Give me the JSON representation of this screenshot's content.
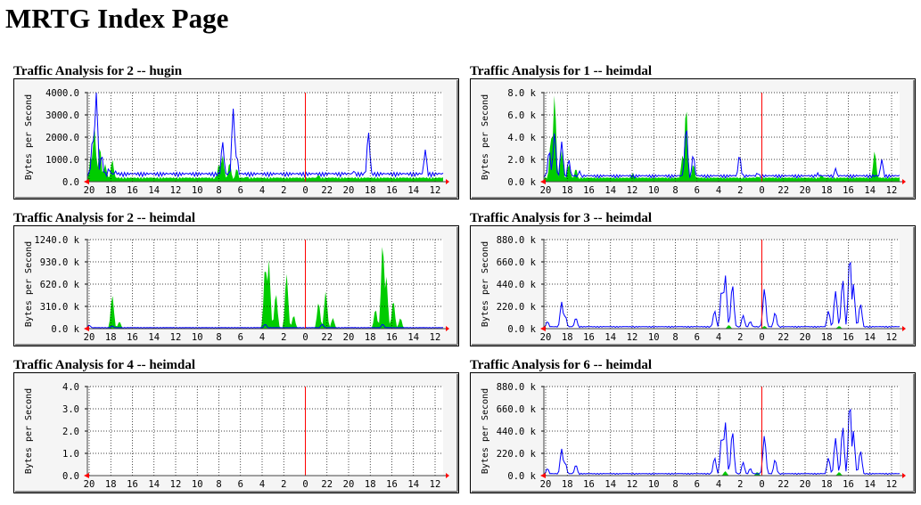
{
  "page": {
    "title": "MRTG Index Page"
  },
  "graph_common": {
    "y_axis_label": "Bytes per Second",
    "x_tick_labels": [
      "20",
      "18",
      "16",
      "14",
      "12",
      "10",
      "8",
      "6",
      "4",
      "2",
      "0",
      "22",
      "20",
      "18",
      "16",
      "14",
      "12"
    ],
    "colors": {
      "in_fill": "#00cc00",
      "out_line": "#0000ff",
      "grid": "#000000",
      "now_marker": "#ff0000",
      "frame_bg": "#f5f5f5",
      "plot_bg": "#ffffff",
      "axis": "#ff0000"
    }
  },
  "graphs": [
    {
      "title": "Traffic Analysis for 2 -- hugin",
      "y_tick_labels": [
        "4000.0",
        "3000.0",
        "2000.0",
        "1000.0",
        "0.0"
      ],
      "in_peaks": [
        [
          0.01,
          0.3
        ],
        [
          0.02,
          0.6
        ],
        [
          0.035,
          0.4
        ],
        [
          0.05,
          0.2
        ],
        [
          0.07,
          0.25
        ],
        [
          0.08,
          0.05
        ],
        [
          0.37,
          0.2
        ],
        [
          0.38,
          0.3
        ],
        [
          0.4,
          0.22
        ],
        [
          0.42,
          0.15
        ],
        [
          0.45,
          0.06
        ],
        [
          0.65,
          0.08
        ],
        [
          0.7,
          0.04
        ]
      ],
      "out_peaks": [
        [
          0.015,
          0.5
        ],
        [
          0.025,
          1.0
        ],
        [
          0.04,
          0.3
        ],
        [
          0.06,
          0.15
        ],
        [
          0.08,
          0.12
        ],
        [
          0.38,
          0.45
        ],
        [
          0.41,
          0.82
        ],
        [
          0.42,
          0.3
        ],
        [
          0.6,
          0.04
        ],
        [
          0.68,
          0.1
        ],
        [
          0.72,
          0.08
        ],
        [
          0.75,
          0.12
        ],
        [
          0.79,
          0.56
        ],
        [
          0.95,
          0.36
        ]
      ],
      "in_base": 0.04,
      "out_base": 0.08
    },
    {
      "title": "Traffic Analysis for 1 -- heimdal",
      "y_tick_labels": [
        "8.0 k",
        "6.0 k",
        "4.0 k",
        "2.0 k",
        "0.0 k"
      ],
      "in_peaks": [
        [
          0.02,
          0.5
        ],
        [
          0.03,
          0.98
        ],
        [
          0.05,
          0.35
        ],
        [
          0.07,
          0.2
        ],
        [
          0.09,
          0.15
        ],
        [
          0.25,
          0.1
        ],
        [
          0.39,
          0.3
        ],
        [
          0.4,
          0.85
        ],
        [
          0.42,
          0.2
        ],
        [
          0.6,
          0.06
        ],
        [
          0.78,
          0.08
        ],
        [
          0.93,
          0.35
        ]
      ],
      "out_peaks": [
        [
          0.015,
          0.35
        ],
        [
          0.03,
          0.55
        ],
        [
          0.05,
          0.45
        ],
        [
          0.07,
          0.25
        ],
        [
          0.1,
          0.12
        ],
        [
          0.4,
          0.62
        ],
        [
          0.42,
          0.3
        ],
        [
          0.55,
          0.3
        ],
        [
          0.6,
          0.1
        ],
        [
          0.77,
          0.1
        ],
        [
          0.82,
          0.15
        ],
        [
          0.95,
          0.25
        ]
      ],
      "in_base": 0.04,
      "out_base": 0.06
    },
    {
      "title": "Traffic Analysis for 2 -- heimdal",
      "y_tick_labels": [
        "1240.0 k",
        "930.0 k",
        "620.0 k",
        "310.0 k",
        "0.0 k"
      ],
      "in_peaks": [
        [
          0.07,
          0.38
        ],
        [
          0.09,
          0.08
        ],
        [
          0.5,
          0.72
        ],
        [
          0.51,
          0.78
        ],
        [
          0.53,
          0.4
        ],
        [
          0.56,
          0.62
        ],
        [
          0.58,
          0.15
        ],
        [
          0.65,
          0.3
        ],
        [
          0.67,
          0.42
        ],
        [
          0.69,
          0.12
        ],
        [
          0.81,
          0.22
        ],
        [
          0.83,
          0.98
        ],
        [
          0.84,
          0.6
        ],
        [
          0.86,
          0.32
        ],
        [
          0.88,
          0.12
        ]
      ],
      "out_peaks": [
        [
          0.005,
          0.04
        ],
        [
          0.07,
          0.03
        ],
        [
          0.5,
          0.05
        ],
        [
          0.66,
          0.05
        ],
        [
          0.83,
          0.05
        ]
      ],
      "in_base": 0.0,
      "out_base": 0.01
    },
    {
      "title": "Traffic Analysis for 3 -- heimdal",
      "y_tick_labels": [
        "880.0 k",
        "660.0 k",
        "440.0 k",
        "220.0 k",
        "0.0 k"
      ],
      "in_peaks": [
        [
          0.52,
          0.04
        ],
        [
          0.62,
          0.03
        ],
        [
          0.83,
          0.03
        ]
      ],
      "out_peaks": [
        [
          0.01,
          0.08
        ],
        [
          0.05,
          0.3
        ],
        [
          0.06,
          0.15
        ],
        [
          0.09,
          0.12
        ],
        [
          0.48,
          0.2
        ],
        [
          0.5,
          0.45
        ],
        [
          0.51,
          0.6
        ],
        [
          0.53,
          0.5
        ],
        [
          0.56,
          0.15
        ],
        [
          0.58,
          0.08
        ],
        [
          0.62,
          0.45
        ],
        [
          0.65,
          0.18
        ],
        [
          0.8,
          0.2
        ],
        [
          0.82,
          0.42
        ],
        [
          0.84,
          0.55
        ],
        [
          0.86,
          0.82
        ],
        [
          0.87,
          0.5
        ],
        [
          0.89,
          0.28
        ]
      ],
      "in_base": 0.0,
      "out_base": 0.02
    },
    {
      "title": "Traffic Analysis for 4 -- heimdal",
      "y_tick_labels": [
        "4.0",
        "3.0",
        "2.0",
        "1.0",
        "0.0"
      ],
      "in_peaks": [],
      "out_peaks": [],
      "in_base": 0.0,
      "out_base": 0.0
    },
    {
      "title": "Traffic Analysis for 6 -- heimdal",
      "y_tick_labels": [
        "880.0 k",
        "660.0 k",
        "440.0 k",
        "220.0 k",
        "0.0 k"
      ],
      "in_peaks": [
        [
          0.51,
          0.05
        ],
        [
          0.6,
          0.04
        ],
        [
          0.83,
          0.04
        ]
      ],
      "out_peaks": [
        [
          0.01,
          0.08
        ],
        [
          0.05,
          0.3
        ],
        [
          0.06,
          0.15
        ],
        [
          0.09,
          0.12
        ],
        [
          0.48,
          0.2
        ],
        [
          0.5,
          0.45
        ],
        [
          0.51,
          0.6
        ],
        [
          0.53,
          0.5
        ],
        [
          0.56,
          0.15
        ],
        [
          0.58,
          0.08
        ],
        [
          0.62,
          0.45
        ],
        [
          0.65,
          0.18
        ],
        [
          0.8,
          0.2
        ],
        [
          0.82,
          0.42
        ],
        [
          0.84,
          0.55
        ],
        [
          0.86,
          0.82
        ],
        [
          0.87,
          0.5
        ],
        [
          0.89,
          0.28
        ]
      ],
      "in_base": 0.0,
      "out_base": 0.02
    }
  ]
}
